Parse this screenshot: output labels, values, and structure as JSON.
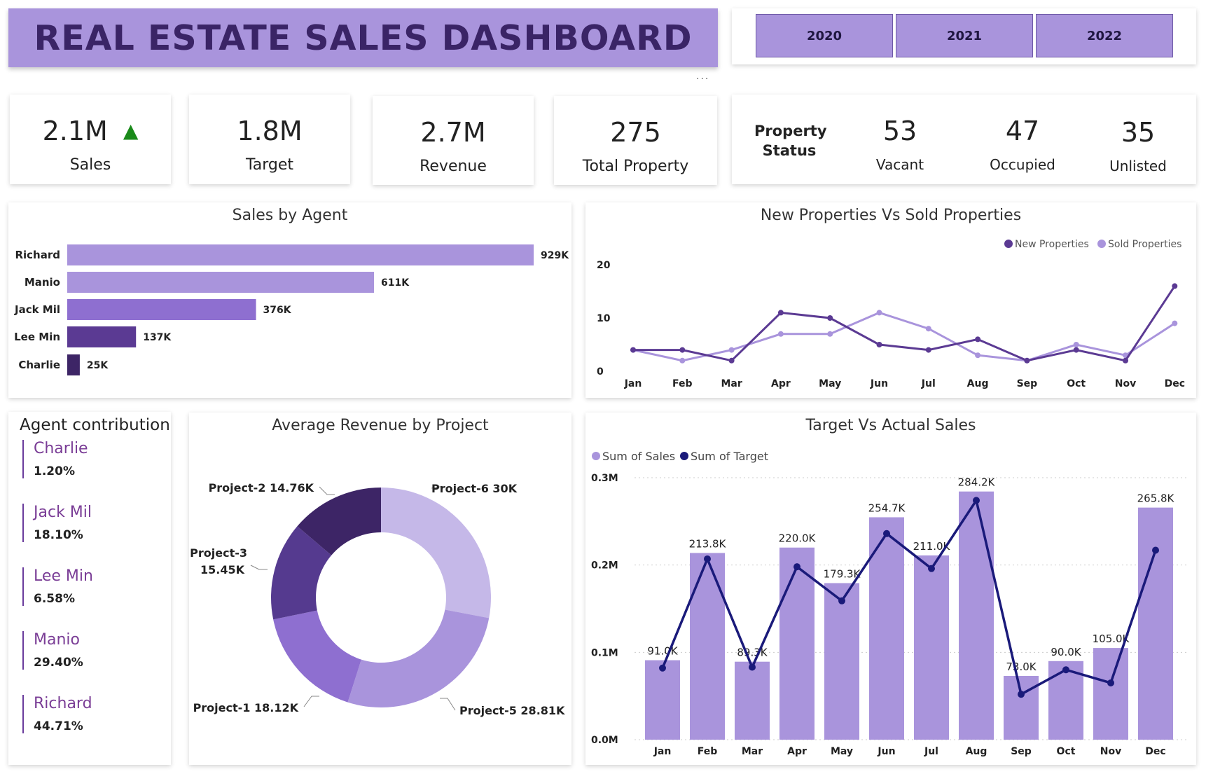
{
  "header": {
    "title": "REAL ESTATE SALES DASHBOARD",
    "more_glyph": "..."
  },
  "year_filter": [
    "2020",
    "2021",
    "2022"
  ],
  "kpis": {
    "sales": {
      "value": "2.1M",
      "label": "Sales",
      "trend_glyph": "▲"
    },
    "target": {
      "value": "1.8M",
      "label": "Target"
    },
    "revenue": {
      "value": "2.7M",
      "label": "Revenue"
    },
    "total_property": {
      "value": "275",
      "label": "Total Property"
    }
  },
  "property_status": {
    "label_line1": "Property",
    "label_line2": "Status",
    "items": [
      {
        "value": "53",
        "label": "Vacant"
      },
      {
        "value": "47",
        "label": "Occupied"
      },
      {
        "value": "35",
        "label": "Unlisted"
      }
    ]
  },
  "agent_contribution": {
    "title": "Agent contribution",
    "items": [
      {
        "name": "Charlie",
        "pct": "1.20%"
      },
      {
        "name": "Jack Mil",
        "pct": "18.10%"
      },
      {
        "name": "Lee Min",
        "pct": "6.58%"
      },
      {
        "name": "Manio",
        "pct": "29.40%"
      },
      {
        "name": "Richard",
        "pct": "44.71%"
      }
    ]
  },
  "colors": {
    "accent": "#a994dc",
    "dark_purple": "#5b3a93",
    "navy": "#1a1a7a",
    "green": "#1a8a1a"
  },
  "chart_data": [
    {
      "id": "sales_by_agent",
      "type": "bar",
      "orientation": "horizontal",
      "title": "Sales by Agent",
      "categories": [
        "Richard",
        "Manio",
        "Jack Mil",
        "Lee Min",
        "Charlie"
      ],
      "values": [
        929,
        611,
        376,
        137,
        25
      ],
      "labels": [
        "929K",
        "611K",
        "376K",
        "137K",
        "25K"
      ],
      "colors": [
        "#a994dc",
        "#a994dc",
        "#8e6fd0",
        "#5b3a93",
        "#3d2566"
      ]
    },
    {
      "id": "new_vs_sold",
      "type": "line",
      "title": "New Properties Vs Sold Properties",
      "categories": [
        "Jan",
        "Feb",
        "Mar",
        "Apr",
        "May",
        "Jun",
        "Jul",
        "Aug",
        "Sep",
        "Oct",
        "Nov",
        "Dec"
      ],
      "yticks": [
        "0",
        "10",
        "20"
      ],
      "ylim": [
        0,
        20
      ],
      "series": [
        {
          "name": "New Properties",
          "color": "#5b3a93",
          "values": [
            4,
            4,
            2,
            11,
            10,
            5,
            4,
            6,
            2,
            4,
            2,
            16
          ]
        },
        {
          "name": "Sold Properties",
          "color": "#a994dc",
          "values": [
            4,
            2,
            4,
            7,
            7,
            11,
            8,
            3,
            2,
            5,
            3,
            9
          ]
        }
      ],
      "legend": "top-right"
    },
    {
      "id": "avg_revenue_by_project",
      "type": "pie",
      "donut": true,
      "title": "Average Revenue by Project",
      "slices": [
        {
          "label": "Project-6 30K",
          "value": 30,
          "color": "#c5b8e8"
        },
        {
          "label": "Project-5 28.81K",
          "value": 28.81,
          "color": "#a994dc"
        },
        {
          "label": "Project-1 18.12K",
          "value": 18.12,
          "color": "#8e6fd0"
        },
        {
          "label": "Project-3",
          "label2": "15.45K",
          "value": 15.45,
          "color": "#553a8f"
        },
        {
          "label": "Project-2 14.76K",
          "value": 14.76,
          "color": "#3d2566"
        }
      ]
    },
    {
      "id": "target_vs_actual",
      "type": "bar",
      "title": "Target Vs Actual Sales",
      "categories": [
        "Jan",
        "Feb",
        "Mar",
        "Apr",
        "May",
        "Jun",
        "Jul",
        "Aug",
        "Sep",
        "Oct",
        "Nov",
        "Dec"
      ],
      "yticks": [
        "0.0M",
        "0.1M",
        "0.2M",
        "0.3M"
      ],
      "ylim": [
        0,
        0.3
      ],
      "series": [
        {
          "name": "Sum of Sales",
          "kind": "bar",
          "color": "#a994dc",
          "values": [
            0.091,
            0.2138,
            0.0893,
            0.22,
            0.1793,
            0.2547,
            0.211,
            0.2842,
            0.073,
            0.09,
            0.105,
            0.2658
          ],
          "labels": [
            "91.0K",
            "213.8K",
            "89.3K",
            "220.0K",
            "179.3K",
            "254.7K",
            "211.0K",
            "284.2K",
            "73.0K",
            "90.0K",
            "105.0K",
            "265.8K"
          ]
        },
        {
          "name": "Sum of Target",
          "kind": "line",
          "color": "#1a1a7a",
          "values": [
            0.082,
            0.207,
            0.083,
            0.198,
            0.159,
            0.236,
            0.196,
            0.274,
            0.052,
            0.08,
            0.065,
            0.217
          ]
        }
      ],
      "legend": "top-left",
      "grid": true
    }
  ]
}
